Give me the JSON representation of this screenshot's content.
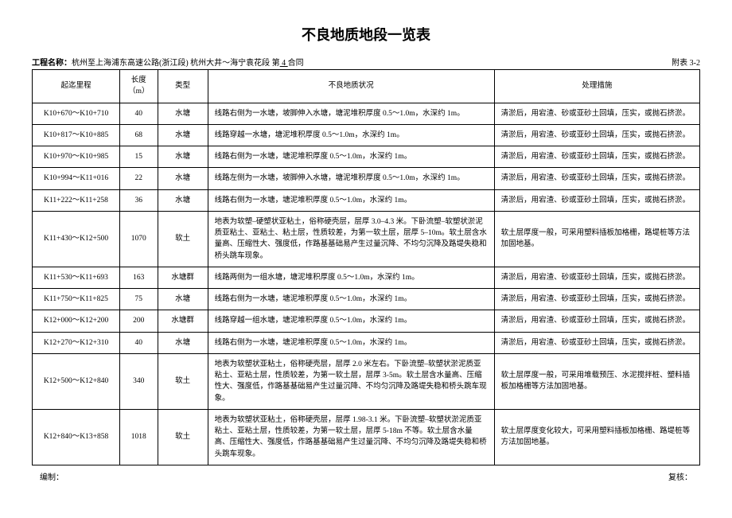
{
  "title": "不良地质地段一览表",
  "project_label": "工程名称：",
  "project_value": "杭州至上海浦东高速公路(浙江段) 杭州大井～海宁袁花段 第",
  "contract_no": " 4 ",
  "contract_suffix": "合同",
  "attachment": "附表 3-2",
  "headers": {
    "range": "起迄里程",
    "length": "长度\n（m）",
    "type": "类型",
    "condition": "不良地质状况",
    "treatment": "处理措施"
  },
  "rows": [
    {
      "range": "K10+670～K10+710",
      "len": "40",
      "type": "水塘",
      "cond": "线路右侧为一水塘，坡脚伸入水塘，塘泥堆积厚度 0.5～1.0m，水深约 1m。",
      "treat": "清淤后，用宕渣、砂或亚砂土回填，压实，或抛石挤淤。"
    },
    {
      "range": "K10+817～K10+885",
      "len": "68",
      "type": "水塘",
      "cond": "线路穿越一水塘，塘泥堆积厚度 0.5～1.0m，水深约 1m。",
      "treat": "清淤后，用宕渣、砂或亚砂土回填，压实，或抛石挤淤。"
    },
    {
      "range": "K10+970～K10+985",
      "len": "15",
      "type": "水塘",
      "cond": "线路右侧为一水塘，塘泥堆积厚度 0.5～1.0m，水深约 1m。",
      "treat": "清淤后，用宕渣、砂或亚砂土回填，压实，或抛石挤淤。"
    },
    {
      "range": "K10+994～K11+016",
      "len": "22",
      "type": "水塘",
      "cond": "线路左侧为一水塘，坡脚伸入水塘，塘泥堆积厚度 0.5～1.0m，水深约 1m。",
      "treat": "清淤后，用宕渣、砂或亚砂土回填，压实，或抛石挤淤。"
    },
    {
      "range": "K11+222～K11+258",
      "len": "36",
      "type": "水塘",
      "cond": "线路右侧为一水塘，塘泥堆积厚度 0.5～1.0m，水深约 1m。",
      "treat": "清淤后，用宕渣、砂或亚砂土回填，压实，或抛石挤淤。"
    },
    {
      "range": "K11+430～K12+500",
      "len": "1070",
      "type": "软土",
      "cond": "地表为软塑–硬塑状亚粘土，俗称硬壳层，层厚 3.0–4.3 米。下卧流塑–软塑状淤泥质亚粘土、亚粘土、粘土层，性质较差，为第一软土层，层厚 5–10m。软土层含水量高、压缩性大、强度低，作路基基础易产生过量沉降、不均匀沉降及路堤失稳和桥头跳车现象。",
      "treat": "软土层厚度一般，可采用塑料插板加格栅，路堤桩等方法加固地基。"
    },
    {
      "range": "K11+530～K11+693",
      "len": "163",
      "type": "水塘群",
      "cond": "线路两侧为一组水塘，塘泥堆积厚度 0.5～1.0m，水深约 1m。",
      "treat": "清淤后，用宕渣、砂或亚砂土回填，压实，或抛石挤淤。"
    },
    {
      "range": "K11+750～K11+825",
      "len": "75",
      "type": "水塘",
      "cond": "线路右侧为一水塘，塘泥堆积厚度 0.5～1.0m，水深约 1m。",
      "treat": "清淤后，用宕渣、砂或亚砂土回填，压实，或抛石挤淤。"
    },
    {
      "range": "K12+000～K12+200",
      "len": "200",
      "type": "水塘群",
      "cond": "线路穿越一组水塘，塘泥堆积厚度 0.5～1.0m，水深约 1m。",
      "treat": "清淤后，用宕渣、砂或亚砂土回填，压实，或抛石挤淤。"
    },
    {
      "range": "K12+270～K12+310",
      "len": "40",
      "type": "水塘",
      "cond": "线路右侧为一水塘，塘泥堆积厚度 0.5～1.0m，水深约 1m。",
      "treat": "清淤后，用宕渣、砂或亚砂土回填，压实，或抛石挤淤。"
    },
    {
      "range": "K12+500～K12+840",
      "len": "340",
      "type": "软土",
      "cond": "地表为软塑状亚粘土，俗称硬壳层，层厚 2.0 米左右。下卧流塑–软塑状淤泥质亚粘土、亚粘土层，性质较差，为第一软土层，层厚 3-5m。软土层含水量高、压缩性大、强度低，作路基基础易产生过量沉降、不均匀沉降及路堤失稳和桥头跳车现象。",
      "treat": "软土层厚度一般，可采用堆载预压、水泥搅拌桩、塑料插板加格栅等方法加固地基。"
    },
    {
      "range": "K12+840～K13+858",
      "len": "1018",
      "type": "软土",
      "cond": "地表为软塑状亚粘土，俗称硬壳层，层厚 1.98-3.1 米。下卧流塑–软塑状淤泥质亚粘土、亚粘土层，性质较差，为第一软土层，层厚 5-18m 不等。软土层含水量高、压缩性大、强度低，作路基基础易产生过量沉降、不均匀沉降及路堤失稳和桥头跳车现象。",
      "treat": "软土层厚度变化较大，可采用塑料插板加格栅、路堤桩等方法加固地基。"
    }
  ],
  "footer": {
    "left": "编制：",
    "right": "复核："
  }
}
